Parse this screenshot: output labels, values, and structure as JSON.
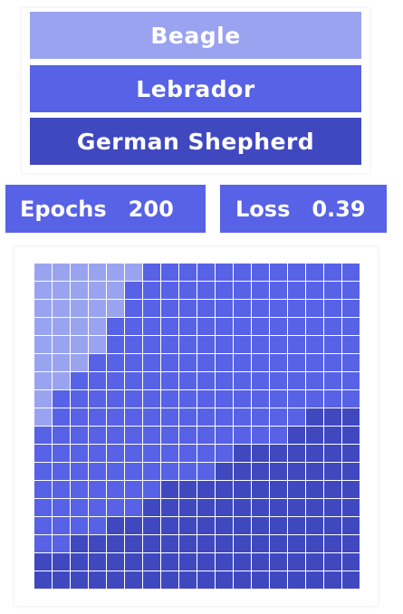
{
  "legend": {
    "items": [
      {
        "label": "Beagle",
        "color": "#9aa3f0"
      },
      {
        "label": "Lebrador",
        "color": "#5762e6"
      },
      {
        "label": "German Shepherd",
        "color": "#3f48bf"
      }
    ]
  },
  "metrics": {
    "epochs": {
      "label": "Epochs",
      "value": "200"
    },
    "loss": {
      "label": "Loss",
      "value": "0.39"
    }
  },
  "chart_data": {
    "type": "heatmap",
    "rows": 18,
    "cols": 18,
    "legend": [
      "Beagle",
      "Lebrador",
      "German Shepherd"
    ],
    "palette": [
      "#9aa3f0",
      "#5762e6",
      "#3f48bf"
    ],
    "class_grid": [
      [
        0,
        0,
        0,
        0,
        0,
        0,
        1,
        1,
        1,
        1,
        1,
        1,
        1,
        1,
        1,
        1,
        1,
        1
      ],
      [
        0,
        0,
        0,
        0,
        0,
        1,
        1,
        1,
        1,
        1,
        1,
        1,
        1,
        1,
        1,
        1,
        1,
        1
      ],
      [
        0,
        0,
        0,
        0,
        0,
        1,
        1,
        1,
        1,
        1,
        1,
        1,
        1,
        1,
        1,
        1,
        1,
        1
      ],
      [
        0,
        0,
        0,
        0,
        1,
        1,
        1,
        1,
        1,
        1,
        1,
        1,
        1,
        1,
        1,
        1,
        1,
        1
      ],
      [
        0,
        0,
        0,
        0,
        1,
        1,
        1,
        1,
        1,
        1,
        1,
        1,
        1,
        1,
        1,
        1,
        1,
        1
      ],
      [
        0,
        0,
        0,
        1,
        1,
        1,
        1,
        1,
        1,
        1,
        1,
        1,
        1,
        1,
        1,
        1,
        1,
        1
      ],
      [
        0,
        0,
        1,
        1,
        1,
        1,
        1,
        1,
        1,
        1,
        1,
        1,
        1,
        1,
        1,
        1,
        1,
        1
      ],
      [
        0,
        1,
        1,
        1,
        1,
        1,
        1,
        1,
        1,
        1,
        1,
        1,
        1,
        1,
        1,
        1,
        1,
        1
      ],
      [
        0,
        1,
        1,
        1,
        1,
        1,
        1,
        1,
        1,
        1,
        1,
        1,
        1,
        1,
        1,
        2,
        2,
        2
      ],
      [
        1,
        1,
        1,
        1,
        1,
        1,
        1,
        1,
        1,
        1,
        1,
        1,
        1,
        1,
        2,
        2,
        2,
        2
      ],
      [
        1,
        1,
        1,
        1,
        1,
        1,
        1,
        1,
        1,
        1,
        1,
        2,
        2,
        2,
        2,
        2,
        2,
        2
      ],
      [
        1,
        1,
        1,
        1,
        1,
        1,
        1,
        1,
        1,
        1,
        2,
        2,
        2,
        2,
        2,
        2,
        2,
        2
      ],
      [
        1,
        1,
        1,
        1,
        1,
        1,
        1,
        2,
        2,
        2,
        2,
        2,
        2,
        2,
        2,
        2,
        2,
        2
      ],
      [
        1,
        1,
        1,
        1,
        1,
        1,
        2,
        2,
        2,
        2,
        2,
        2,
        2,
        2,
        2,
        2,
        2,
        2
      ],
      [
        1,
        1,
        1,
        1,
        2,
        2,
        2,
        2,
        2,
        2,
        2,
        2,
        2,
        2,
        2,
        2,
        2,
        2
      ],
      [
        1,
        1,
        2,
        2,
        2,
        2,
        2,
        2,
        2,
        2,
        2,
        2,
        2,
        2,
        2,
        2,
        2,
        2
      ],
      [
        2,
        2,
        2,
        2,
        2,
        2,
        2,
        2,
        2,
        2,
        2,
        2,
        2,
        2,
        2,
        2,
        2,
        2
      ],
      [
        2,
        2,
        2,
        2,
        2,
        2,
        2,
        2,
        2,
        2,
        2,
        2,
        2,
        2,
        2,
        2,
        2,
        2
      ]
    ]
  }
}
